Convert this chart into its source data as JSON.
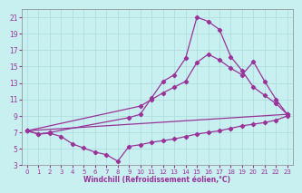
{
  "xlabel": "Windchill (Refroidissement éolien,°C)",
  "background_color": "#c8f0f0",
  "line_color": "#993399",
  "grid_color": "#b0dede",
  "xlim": [
    -0.5,
    23.5
  ],
  "ylim": [
    3,
    22
  ],
  "xticks": [
    0,
    1,
    2,
    3,
    4,
    5,
    6,
    7,
    8,
    9,
    10,
    11,
    12,
    13,
    14,
    15,
    16,
    17,
    18,
    19,
    20,
    21,
    22,
    23
  ],
  "yticks": [
    3,
    5,
    7,
    9,
    11,
    13,
    15,
    17,
    19,
    21
  ],
  "curves": [
    {
      "comment": "Curve A - bottom dipping then rising, many points",
      "x": [
        0,
        1,
        2,
        3,
        4,
        5,
        6,
        7,
        8,
        9,
        10,
        11,
        12,
        13,
        14,
        15,
        16,
        17,
        18,
        19,
        20,
        21,
        22,
        23
      ],
      "y": [
        7.2,
        6.8,
        6.9,
        6.5,
        5.6,
        5.1,
        4.6,
        4.3,
        3.5,
        5.3,
        5.5,
        5.8,
        6.0,
        6.2,
        6.5,
        6.8,
        7.0,
        7.2,
        7.5,
        7.8,
        8.0,
        8.2,
        8.5,
        9.0
      ]
    },
    {
      "comment": "Curve B - nearly straight line from bottom-left to top-right",
      "x": [
        0,
        23
      ],
      "y": [
        7.2,
        9.2
      ]
    },
    {
      "comment": "Curve C - from 0 to peak at 15 then drops",
      "x": [
        0,
        1,
        2,
        9,
        10,
        11,
        12,
        13,
        14,
        15,
        16,
        17,
        18,
        19,
        20,
        21,
        22,
        23
      ],
      "y": [
        7.2,
        6.8,
        7.0,
        8.8,
        9.2,
        11.2,
        13.2,
        14.0,
        16.0,
        21.0,
        20.5,
        19.5,
        16.2,
        14.5,
        12.5,
        11.5,
        10.5,
        9.2
      ]
    },
    {
      "comment": "Curve D - rises more gradually to x=20, then drops slightly",
      "x": [
        0,
        10,
        11,
        12,
        13,
        14,
        15,
        16,
        17,
        18,
        19,
        20,
        21,
        22,
        23
      ],
      "y": [
        7.2,
        10.2,
        11.0,
        11.8,
        12.5,
        13.2,
        15.5,
        16.5,
        15.8,
        14.8,
        14.0,
        15.6,
        13.2,
        11.0,
        9.2
      ]
    }
  ]
}
